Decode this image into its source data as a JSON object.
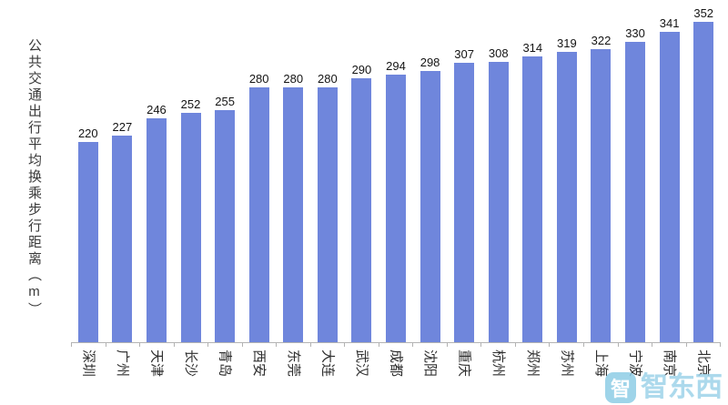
{
  "chart_data": {
    "type": "bar",
    "title": "",
    "ylabel": "公共交通出行平均换乘步行距离（m）",
    "xlabel": "",
    "categories": [
      "深圳",
      "广州",
      "天津",
      "长沙",
      "青岛",
      "西安",
      "东莞",
      "大连",
      "武汉",
      "成都",
      "沈阳",
      "重庆",
      "杭州",
      "郑州",
      "苏州",
      "上海",
      "宁波",
      "南京",
      "北京"
    ],
    "values": [
      220,
      227,
      246,
      252,
      255,
      280,
      280,
      280,
      290,
      294,
      298,
      307,
      308,
      314,
      319,
      322,
      330,
      341,
      352
    ],
    "bar_color": "#6f86dc",
    "ylim": [
      0,
      375
    ],
    "grid": false,
    "legend": "none",
    "value_labels": true
  },
  "watermark": {
    "icon_char": "智",
    "text": "智东西",
    "color": "#9ed3e9"
  }
}
